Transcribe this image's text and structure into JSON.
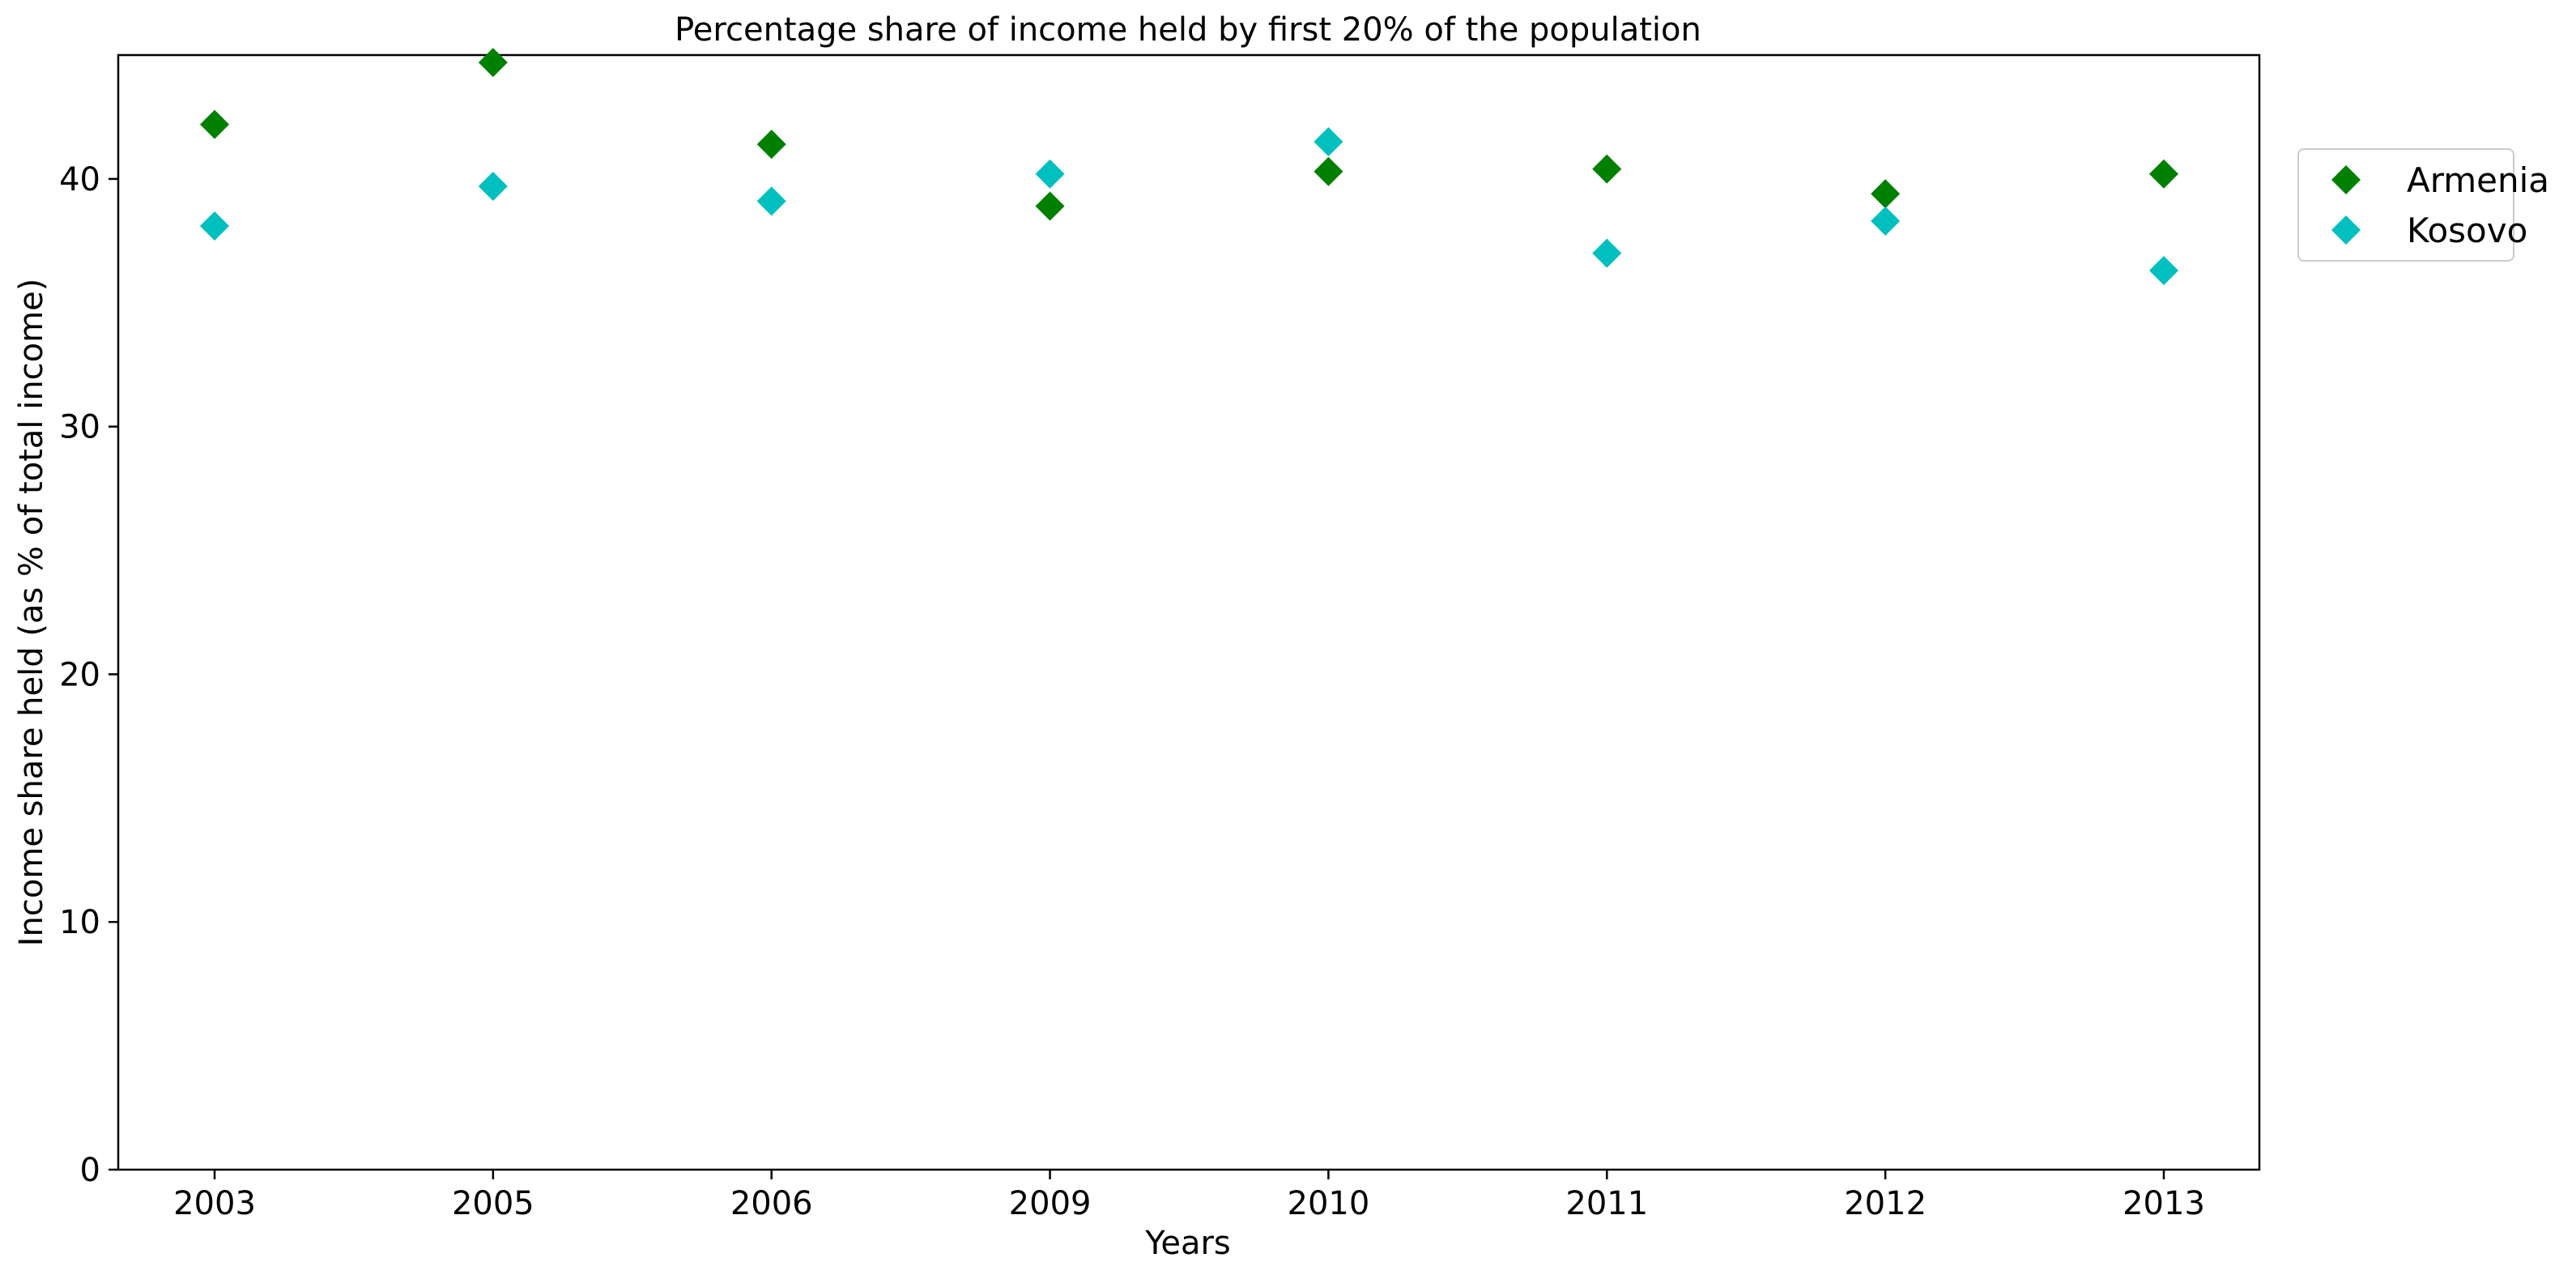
{
  "chart_data": {
    "type": "scatter",
    "title": "Percentage share of income held by first 20% of the population",
    "xlabel": "Years",
    "ylabel": "Income share held (as % of total income)",
    "categories": [
      "2003",
      "2005",
      "2006",
      "2009",
      "2010",
      "2011",
      "2012",
      "2013"
    ],
    "ylim": [
      0,
      45
    ],
    "yticks": [
      0,
      10,
      20,
      30,
      40
    ],
    "grid": false,
    "legend_position": "outside-right-top",
    "marker": "diamond",
    "series": [
      {
        "name": "Armenia",
        "color": "#008000",
        "values": [
          42.2,
          44.7,
          41.4,
          38.9,
          40.3,
          40.4,
          39.4,
          40.2
        ]
      },
      {
        "name": "Kosovo",
        "color": "#00BFBF",
        "values": [
          38.1,
          39.7,
          39.1,
          40.2,
          41.5,
          37.0,
          38.3,
          36.3
        ]
      }
    ]
  }
}
